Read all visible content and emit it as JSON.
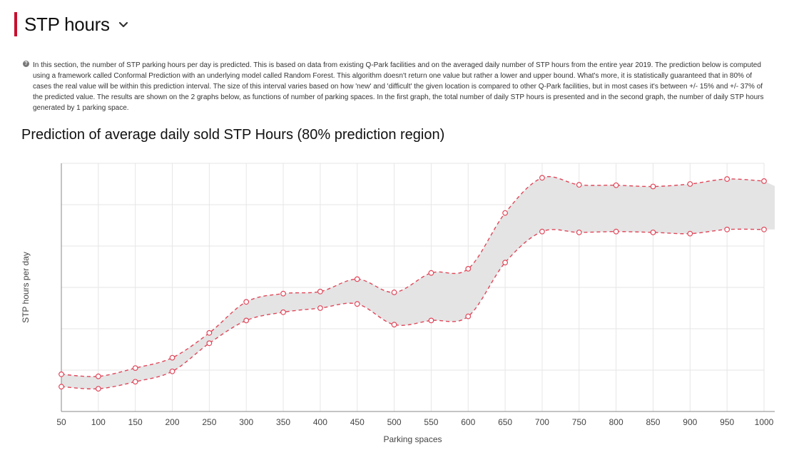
{
  "header": {
    "title": "STP hours",
    "toggle_icon": "chevron-down-icon",
    "accent_color": "#c8102e"
  },
  "info": {
    "icon": "info-icon",
    "text": "In this section, the number of STP parking hours per day is predicted. This is based on data from existing Q-Park facilities and on the averaged daily number of STP hours from the entire year 2019. The prediction below is computed using a framework called Conformal  Prediction with an underlying model called  Random  Forest. This algorithm doesn't return one value but rather a lower and upper bound. What's more, it is statistically guaranteed that in 80% of cases the real value will be within this prediction interval. The size of this interval varies based on how 'new' and 'difficult' the given location is compared to other Q-Park facilities, but in most cases it's between +/- 15% and +/- 37% of the predicted value. The results are shown on the 2 graphs below, as functions of number of parking spaces.  In the first graph, the total number of daily STP hours is presented and in the second graph, the number of daily STP hours generated by 1 parking space."
  },
  "chart_data": {
    "type": "area",
    "title": "Prediction of average daily sold STP  Hours (80% prediction region)",
    "xlabel": "Parking spaces",
    "ylabel": "STP hours per day",
    "x": [
      50,
      100,
      150,
      200,
      250,
      300,
      350,
      400,
      450,
      500,
      550,
      600,
      650,
      700,
      750,
      800,
      850,
      900,
      950,
      1000
    ],
    "xlim": [
      50,
      1000
    ],
    "ylim": [
      0,
      6
    ],
    "y_tick_labels_shown": false,
    "grid": true,
    "legend": "none",
    "series": [
      {
        "role": "upper",
        "values": [
          0.9,
          0.85,
          1.05,
          1.3,
          1.9,
          2.65,
          2.85,
          2.9,
          3.2,
          2.88,
          3.35,
          3.45,
          4.8,
          5.65,
          5.48,
          5.47,
          5.44,
          5.5,
          5.62,
          5.57
        ]
      },
      {
        "role": "lower",
        "values": [
          0.6,
          0.55,
          0.72,
          0.97,
          1.65,
          2.2,
          2.4,
          2.5,
          2.6,
          2.1,
          2.2,
          2.3,
          3.6,
          4.35,
          4.33,
          4.35,
          4.33,
          4.3,
          4.4,
          4.4
        ]
      }
    ],
    "colors": {
      "band": "#e4e4e4",
      "line": "#e0475a",
      "grid": "#e6e6e6",
      "axis": "#8a8a8a"
    }
  }
}
